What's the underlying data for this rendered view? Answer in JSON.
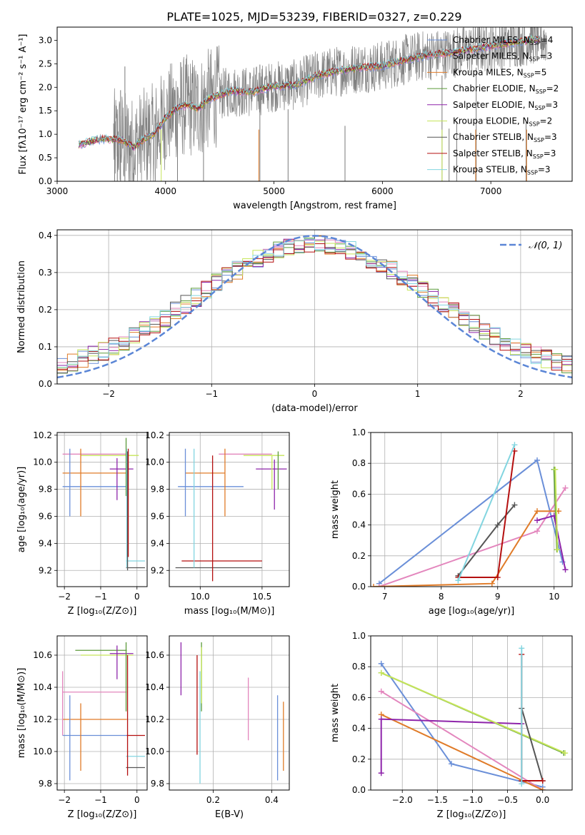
{
  "title": "PLATE=1025, MJD=53239, FIBERID=0327, z=0.229",
  "colors": {
    "c1": "#ff7f0e",
    "c2": "#6a8fd8",
    "c3": "#e07b28",
    "c4": "#5b9a3a",
    "c5": "#8e24aa",
    "c6": "#c6e55a",
    "c7": "#555555",
    "c8": "#b40f0f",
    "c9": "#82d5e0",
    "c10": "#e386bd",
    "chabrier_miles": "#6a8fd8",
    "salpeter_miles": "#e386bd",
    "kroupa_miles": "#e07b28",
    "chabrier_elodie": "#5b9a3a",
    "salpeter_elodie": "#8e24aa",
    "kroupa_elodie": "#c6e55a",
    "chabrier_stelib": "#555555",
    "salpeter_stelib": "#b40f0f",
    "kroupa_stelib": "#82d5e0",
    "data": "#808080",
    "normal": "#5b86d6"
  },
  "legend_spec": [
    {
      "label": "Chabrier MILES, N",
      "sub": "SSP",
      "suffix": "=4",
      "key": "chabrier_miles"
    },
    {
      "label": "Salpeter MILES, N",
      "sub": "SSP",
      "suffix": "=3",
      "key": "salpeter_miles"
    },
    {
      "label": "Kroupa MILES, N",
      "sub": "SSP",
      "suffix": "=5",
      "key": "kroupa_miles"
    },
    {
      "label": "Chabrier ELODIE, N",
      "sub": "SSP",
      "suffix": "=2",
      "key": "chabrier_elodie"
    },
    {
      "label": "Salpeter ELODIE, N",
      "sub": "SSP",
      "suffix": "=3",
      "key": "salpeter_elodie"
    },
    {
      "label": "Kroupa ELODIE, N",
      "sub": "SSP",
      "suffix": "=2",
      "key": "kroupa_elodie"
    },
    {
      "label": "Chabrier STELIB, N",
      "sub": "SSP",
      "suffix": "=3",
      "key": "chabrier_stelib"
    },
    {
      "label": "Salpeter STELIB, N",
      "sub": "SSP",
      "suffix": "=3",
      "key": "salpeter_stelib"
    },
    {
      "label": "Kroupa STELIB, N",
      "sub": "SSP",
      "suffix": "=3",
      "key": "kroupa_stelib"
    }
  ],
  "chart_data": [
    {
      "type": "line",
      "xlabel": "wavelength [Angstrom, rest frame]",
      "ylabel": "Flux [fλ10⁻¹⁷ erg cm⁻² s⁻¹ A⁻¹]",
      "xlim": [
        3000,
        7750
      ],
      "ylim": [
        0,
        3.28
      ],
      "xticks": [
        3000,
        4000,
        5000,
        6000,
        7000
      ],
      "xtick_labels": [
        "3000",
        "4000",
        "5000",
        "6000",
        "7000"
      ],
      "yticks": [
        0,
        0.5,
        1.0,
        1.5,
        2.0,
        2.5,
        3.0
      ],
      "ytick_labels": [
        "0.0",
        "0.5",
        "1.0",
        "1.5",
        "2.0",
        "2.5",
        "3.0"
      ],
      "grid": false,
      "legend_position": "upper-right",
      "model_continuum": {
        "x": [
          3200,
          3400,
          3600,
          3700,
          3800,
          3900,
          4000,
          4100,
          4200,
          4300,
          4400,
          4600,
          4800,
          5000,
          5200,
          5400,
          5600,
          5800,
          6000,
          6200,
          6400,
          6600,
          6800,
          7000,
          7200,
          7400,
          7450
        ],
        "y": [
          0.78,
          0.9,
          0.88,
          0.72,
          0.9,
          1.02,
          1.35,
          1.55,
          1.62,
          1.55,
          1.75,
          1.92,
          1.9,
          2.02,
          2.05,
          2.25,
          2.35,
          2.42,
          2.45,
          2.58,
          2.68,
          2.72,
          2.8,
          2.88,
          2.95,
          3.02,
          3.02
        ]
      },
      "observed_dips": [
        3530,
        3555,
        3585,
        3625,
        3680,
        3905,
        4110,
        4350,
        4870,
        5130,
        5655,
        6550,
        6615,
        6685,
        6865,
        7325
      ],
      "observed_spans": [
        3520,
        7520
      ]
    },
    {
      "type": "line",
      "xlabel": "(data-model)/error",
      "ylabel": "Normed distribution",
      "xlim": [
        -2.5,
        2.5
      ],
      "ylim": [
        0,
        0.415
      ],
      "xticks": [
        -2,
        -1,
        0,
        1,
        2
      ],
      "xtick_labels": [
        "−2",
        "−1",
        "0",
        "1",
        "2"
      ],
      "yticks": [
        0,
        0.1,
        0.2,
        0.3,
        0.4
      ],
      "ytick_labels": [
        "0.0",
        "0.1",
        "0.2",
        "0.3",
        "0.4"
      ],
      "grid": true,
      "legend": "𝒩(0, 1)",
      "legend_position": "upper-right",
      "bin_width": 0.1,
      "bin_start": -2.5
    },
    {
      "type": "scatter",
      "name": "age-vs-Z",
      "xlabel": "Z [log₁₀(Z/Z⊙)]",
      "ylabel": "age  [log₁₀(age/yr)]",
      "xlim": [
        -2.2,
        0.28
      ],
      "ylim": [
        9.08,
        10.22
      ],
      "xticks": [
        -2,
        -1,
        0
      ],
      "xtick_labels": [
        "−2",
        "−1",
        "0"
      ],
      "yticks": [
        9.2,
        9.4,
        9.6,
        9.8,
        10.0,
        10.2
      ],
      "ytick_labels": [
        "9.2",
        "9.4",
        "9.6",
        "9.8",
        "10.0",
        "10.2"
      ],
      "grid": true,
      "hbars": [
        {
          "y": 10.06,
          "x0": -2.05,
          "x1": -0.28,
          "c": "salpeter_miles"
        },
        {
          "y": 10.05,
          "x0": -1.55,
          "x1": 0.05,
          "c": "kroupa_elodie"
        },
        {
          "y": 9.92,
          "x0": -2.05,
          "x1": -0.28,
          "c": "kroupa_miles"
        },
        {
          "y": 9.95,
          "x0": -0.75,
          "x1": -0.1,
          "c": "salpeter_elodie"
        },
        {
          "y": 9.82,
          "x0": -2.05,
          "x1": -0.3,
          "c": "chabrier_miles"
        },
        {
          "y": 9.27,
          "x0": -0.3,
          "x1": 0.22,
          "c": "kroupa_stelib"
        },
        {
          "y": 9.22,
          "x0": -0.3,
          "x1": 0.22,
          "c": "chabrier_stelib"
        }
      ],
      "vbars": [
        {
          "x": -1.85,
          "y0": 9.6,
          "y1": 10.1,
          "c": "chabrier_miles"
        },
        {
          "x": -1.55,
          "y0": 9.6,
          "y1": 10.1,
          "c": "kroupa_miles"
        },
        {
          "x": -0.55,
          "y0": 9.72,
          "y1": 10.03,
          "c": "salpeter_elodie"
        },
        {
          "x": -0.3,
          "y0": 9.75,
          "y1": 10.18,
          "c": "chabrier_elodie"
        },
        {
          "x": -0.28,
          "y0": 9.22,
          "y1": 10.1,
          "c": "kroupa_stelib"
        },
        {
          "x": -0.26,
          "y0": 9.2,
          "y1": 10.08,
          "c": "chabrier_stelib"
        },
        {
          "x": -0.24,
          "y0": 9.3,
          "y1": 10.1,
          "c": "salpeter_stelib"
        }
      ]
    },
    {
      "type": "scatter",
      "name": "age-vs-mass",
      "xlabel": "mass [log₁₀(M/M⊙)]",
      "ylabel": "",
      "xlim": [
        9.75,
        10.72
      ],
      "ylim": [
        9.08,
        10.22
      ],
      "xticks": [
        10.0,
        10.5
      ],
      "xtick_labels": [
        "10.0",
        "10.5"
      ],
      "yticks": [
        9.2,
        9.4,
        9.6,
        9.8,
        10.0,
        10.2
      ],
      "ytick_labels": [
        "9.2",
        "9.4",
        "9.6",
        "9.8",
        "10.0",
        "10.2"
      ],
      "grid": true,
      "hbars": [
        {
          "y": 10.06,
          "x0": 10.15,
          "x1": 10.58,
          "c": "salpeter_miles"
        },
        {
          "y": 10.05,
          "x0": 10.35,
          "x1": 10.68,
          "c": "kroupa_elodie"
        },
        {
          "y": 9.92,
          "x0": 9.88,
          "x1": 10.2,
          "c": "kroupa_miles"
        },
        {
          "y": 9.95,
          "x0": 10.45,
          "x1": 10.7,
          "c": "salpeter_elodie"
        },
        {
          "y": 9.82,
          "x0": 9.82,
          "x1": 10.35,
          "c": "chabrier_miles"
        },
        {
          "y": 9.27,
          "x0": 9.85,
          "x1": 10.5,
          "c": "salpeter_stelib"
        },
        {
          "y": 9.22,
          "x0": 9.8,
          "x1": 10.5,
          "c": "chabrier_stelib"
        }
      ],
      "vbars": [
        {
          "x": 9.88,
          "y0": 9.6,
          "y1": 10.1,
          "c": "chabrier_miles"
        },
        {
          "x": 9.95,
          "y0": 9.22,
          "y1": 10.1,
          "c": "kroupa_stelib"
        },
        {
          "x": 10.1,
          "y0": 9.12,
          "y1": 10.05,
          "c": "salpeter_stelib"
        },
        {
          "x": 10.2,
          "y0": 9.6,
          "y1": 10.1,
          "c": "kroupa_miles"
        },
        {
          "x": 10.6,
          "y0": 9.65,
          "y1": 10.02,
          "c": "salpeter_elodie"
        },
        {
          "x": 10.63,
          "y0": 9.8,
          "y1": 10.08,
          "c": "chabrier_elodie"
        },
        {
          "x": 10.58,
          "y0": 9.8,
          "y1": 10.05,
          "c": "kroupa_elodie"
        }
      ]
    },
    {
      "type": "line",
      "name": "weight-vs-age",
      "xlabel": "age  [log₁₀(age/yr)]",
      "ylabel": "mass weight",
      "xlim": [
        6.75,
        10.32
      ],
      "ylim": [
        0,
        1.0
      ],
      "xticks": [
        7,
        8,
        9,
        10
      ],
      "xtick_labels": [
        "7",
        "8",
        "9",
        "10"
      ],
      "yticks": [
        0,
        0.2,
        0.4,
        0.6,
        0.8,
        1.0
      ],
      "ytick_labels": [
        "0.0",
        "0.2",
        "0.4",
        "0.6",
        "0.8",
        "1.0"
      ],
      "grid": true,
      "series": [
        {
          "c": "chabrier_miles",
          "x": [
            6.9,
            9.7,
            10.15
          ],
          "y": [
            0.02,
            0.82,
            0.16
          ]
        },
        {
          "c": "salpeter_miles",
          "x": [
            6.9,
            9.7,
            10.2
          ],
          "y": [
            0.0,
            0.36,
            0.64
          ]
        },
        {
          "c": "kroupa_miles",
          "x": [
            6.8,
            8.9,
            9.7,
            10.08
          ],
          "y": [
            0.0,
            0.02,
            0.49,
            0.49
          ]
        },
        {
          "c": "chabrier_elodie",
          "x": [
            10.0,
            10.05
          ],
          "y": [
            0.76,
            0.24
          ]
        },
        {
          "c": "salpeter_elodie",
          "x": [
            9.7,
            10.0,
            10.2
          ],
          "y": [
            0.43,
            0.46,
            0.11
          ]
        },
        {
          "c": "kroupa_elodie",
          "x": [
            10.02,
            10.06
          ],
          "y": [
            0.76,
            0.24
          ]
        },
        {
          "c": "chabrier_stelib",
          "x": [
            8.3,
            9.0,
            9.3
          ],
          "y": [
            0.07,
            0.4,
            0.53
          ]
        },
        {
          "c": "salpeter_stelib",
          "x": [
            8.3,
            9.0,
            9.3
          ],
          "y": [
            0.06,
            0.06,
            0.88
          ]
        },
        {
          "c": "kroupa_stelib",
          "x": [
            8.3,
            8.3,
            9.3
          ],
          "y": [
            0.04,
            0.04,
            0.92
          ]
        }
      ]
    },
    {
      "type": "scatter",
      "name": "mass-vs-Z",
      "xlabel": "Z [log₁₀(Z/Z⊙)]",
      "ylabel": "mass [log₁₀(M/M⊙)]",
      "xlim": [
        -2.2,
        0.28
      ],
      "ylim": [
        9.76,
        10.72
      ],
      "xticks": [
        -2,
        -1,
        0
      ],
      "xtick_labels": [
        "−2",
        "−1",
        "0"
      ],
      "yticks": [
        9.8,
        10.0,
        10.2,
        10.4,
        10.6
      ],
      "ytick_labels": [
        "9.8",
        "10.0",
        "10.2",
        "10.4",
        "10.6"
      ],
      "grid": true,
      "hbars": [
        {
          "y": 10.63,
          "x0": -1.7,
          "x1": -0.28,
          "c": "chabrier_elodie"
        },
        {
          "y": 10.61,
          "x0": -0.75,
          "x1": -0.1,
          "c": "salpeter_elodie"
        },
        {
          "y": 10.6,
          "x0": -1.55,
          "x1": -0.1,
          "c": "kroupa_elodie"
        },
        {
          "y": 10.37,
          "x0": -2.05,
          "x1": -0.28,
          "c": "salpeter_miles"
        },
        {
          "y": 10.2,
          "x0": -2.05,
          "x1": -0.28,
          "c": "kroupa_miles"
        },
        {
          "y": 10.1,
          "x0": -2.05,
          "x1": -0.28,
          "c": "chabrier_miles"
        },
        {
          "y": 10.1,
          "x0": -0.28,
          "x1": 0.22,
          "c": "salpeter_stelib"
        },
        {
          "y": 9.97,
          "x0": -0.3,
          "x1": 0.22,
          "c": "kroupa_stelib"
        },
        {
          "y": 9.9,
          "x0": -0.3,
          "x1": 0.22,
          "c": "chabrier_stelib"
        }
      ],
      "vbars": [
        {
          "x": -2.05,
          "y0": 10.1,
          "y1": 10.5,
          "c": "salpeter_miles"
        },
        {
          "x": -1.85,
          "y0": 9.82,
          "y1": 10.35,
          "c": "chabrier_miles"
        },
        {
          "x": -1.55,
          "y0": 9.88,
          "y1": 10.3,
          "c": "kroupa_miles"
        },
        {
          "x": -0.55,
          "y0": 10.45,
          "y1": 10.66,
          "c": "salpeter_elodie"
        },
        {
          "x": -0.3,
          "y0": 10.25,
          "y1": 10.68,
          "c": "chabrier_elodie"
        },
        {
          "x": -0.26,
          "y0": 9.85,
          "y1": 10.6,
          "c": "salpeter_stelib"
        }
      ]
    },
    {
      "type": "scatter",
      "name": "mass-vs-EBV",
      "xlabel": "E(B-V)",
      "ylabel": "",
      "xlim": [
        0.05,
        0.46
      ],
      "ylim": [
        9.76,
        10.72
      ],
      "xticks": [
        0.2,
        0.4
      ],
      "xtick_labels": [
        "0.2",
        "0.4"
      ],
      "yticks": [
        9.8,
        10.0,
        10.2,
        10.4,
        10.6
      ],
      "ytick_labels": [
        "9.8",
        "10.0",
        "10.2",
        "10.4",
        "10.6"
      ],
      "grid": true,
      "vbars": [
        {
          "x": 0.09,
          "y0": 10.35,
          "y1": 10.68,
          "c": "salpeter_elodie"
        },
        {
          "x": 0.145,
          "y0": 9.98,
          "y1": 10.6,
          "c": "salpeter_stelib"
        },
        {
          "x": 0.155,
          "y0": 9.8,
          "y1": 10.5,
          "c": "kroupa_stelib"
        },
        {
          "x": 0.16,
          "y0": 10.25,
          "y1": 10.68,
          "c": "chabrier_elodie"
        },
        {
          "x": 0.16,
          "y0": 10.3,
          "y1": 10.65,
          "c": "kroupa_elodie"
        },
        {
          "x": 0.32,
          "y0": 10.07,
          "y1": 10.46,
          "c": "salpeter_miles"
        },
        {
          "x": 0.42,
          "y0": 9.82,
          "y1": 10.35,
          "c": "chabrier_miles"
        },
        {
          "x": 0.44,
          "y0": 9.88,
          "y1": 10.31,
          "c": "kroupa_miles"
        }
      ]
    },
    {
      "type": "line",
      "name": "weight-vs-Z",
      "xlabel": "Z [log₁₀(Z/Z⊙)]",
      "ylabel": "mass weight",
      "xlim": [
        -2.45,
        0.42
      ],
      "ylim": [
        0,
        1.0
      ],
      "xticks": [
        -2.0,
        -1.5,
        -1.0,
        -0.5,
        0.0
      ],
      "xtick_labels": [
        "−2.0",
        "−1.5",
        "−1.0",
        "−0.5",
        "0.0"
      ],
      "yticks": [
        0,
        0.2,
        0.4,
        0.6,
        0.8,
        1.0
      ],
      "ytick_labels": [
        "0.0",
        "0.2",
        "0.4",
        "0.6",
        "0.8",
        "1.0"
      ],
      "grid": true,
      "series": [
        {
          "c": "chabrier_miles",
          "x": [
            -2.3,
            -1.3,
            0.0
          ],
          "y": [
            0.82,
            0.17,
            0.02
          ]
        },
        {
          "c": "salpeter_miles",
          "x": [
            -2.3,
            0.0
          ],
          "y": [
            0.64,
            0.0
          ]
        },
        {
          "c": "kroupa_miles",
          "x": [
            -2.3,
            0.0
          ],
          "y": [
            0.49,
            0.0
          ]
        },
        {
          "c": "chabrier_elodie",
          "x": [
            -2.3,
            0.3
          ],
          "y": [
            0.76,
            0.24
          ]
        },
        {
          "c": "salpeter_elodie",
          "x": [
            -2.3,
            -2.3,
            -0.3
          ],
          "y": [
            0.11,
            0.46,
            0.43
          ]
        },
        {
          "c": "kroupa_elodie",
          "x": [
            -2.3,
            0.32
          ],
          "y": [
            0.76,
            0.24
          ]
        },
        {
          "c": "chabrier_stelib",
          "x": [
            -0.3,
            0.0
          ],
          "y": [
            0.53,
            0.06
          ]
        },
        {
          "c": "salpeter_stelib",
          "x": [
            -0.3,
            -0.3,
            0.0
          ],
          "y": [
            0.88,
            0.06,
            0.06
          ]
        },
        {
          "c": "kroupa_stelib",
          "x": [
            -0.3,
            -0.3
          ],
          "y": [
            0.92,
            0.04
          ]
        }
      ]
    }
  ]
}
